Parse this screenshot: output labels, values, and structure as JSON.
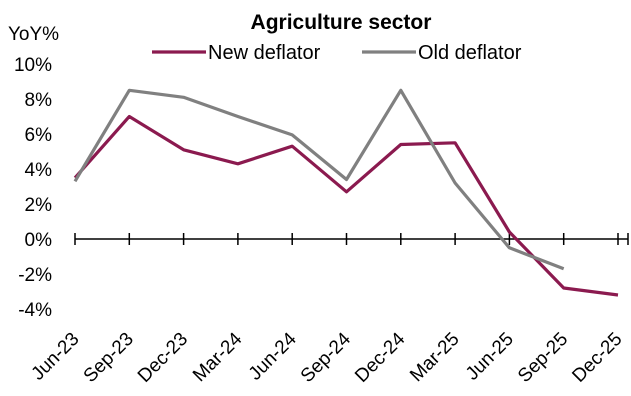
{
  "chart_data": {
    "type": "line",
    "title": "Agriculture sector",
    "ylabel": "YoY%",
    "xlabel": "",
    "y_unit": "%",
    "ylim": [
      -4,
      10
    ],
    "yticks": [
      10,
      8,
      6,
      4,
      2,
      0,
      -2,
      -4
    ],
    "ytick_labels": [
      "10%",
      "8%",
      "6%",
      "4%",
      "2%",
      "0%",
      "-2%",
      "-4%"
    ],
    "categories": [
      "Jun-23",
      "Sep-23",
      "Dec-23",
      "Mar-24",
      "Jun-24",
      "Sep-24",
      "Dec-24",
      "Mar-25",
      "Jun-25",
      "Sep-25",
      "Dec-25"
    ],
    "legend_position": "top-center",
    "grid": false,
    "series": [
      {
        "name": "New deflator",
        "color": "#8B1A4F",
        "values": [
          3.5,
          7.0,
          5.1,
          4.3,
          5.3,
          2.7,
          5.4,
          5.5,
          0.4,
          -2.8,
          -3.2
        ]
      },
      {
        "name": "Old deflator",
        "color": "#808080",
        "values": [
          3.3,
          8.5,
          8.1,
          7.0,
          5.95,
          3.4,
          8.5,
          3.2,
          -0.5,
          -1.7,
          null
        ]
      }
    ]
  }
}
